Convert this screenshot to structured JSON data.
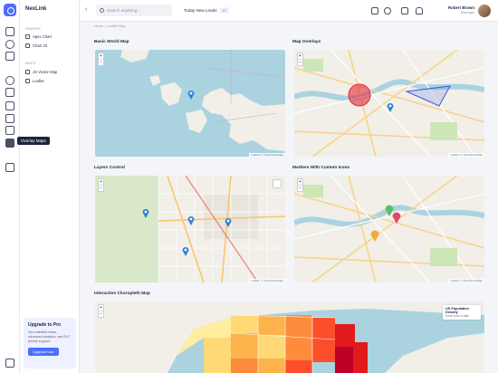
{
  "app": {
    "title": "NexLink"
  },
  "nav": {
    "sections": [
      {
        "heading": "GRAPHS",
        "items": [
          {
            "label": "Apex Chart",
            "icon": "chart-icon"
          },
          {
            "label": "Chart JS",
            "icon": "chart-icon"
          }
        ]
      },
      {
        "heading": "MAPS",
        "items": [
          {
            "label": "JS Vector Map",
            "icon": "map-icon"
          },
          {
            "label": "Leaflet",
            "icon": "map-icon"
          }
        ]
      }
    ]
  },
  "tooltip": "Overlay Maps",
  "promo": {
    "title": "Upgrade to Pro",
    "text": "Get unlimited leads, advanced analytics, and 24/7 priority support.",
    "button": "Upgrade Now"
  },
  "search": {
    "placeholder": "Search anything..."
  },
  "header": {
    "leads_label": "Today New Leads",
    "leads_count": "27"
  },
  "user": {
    "name": "Robert Brown",
    "role": "Manager"
  },
  "breadcrumb": "Home > Leaflet Map",
  "cards": {
    "basic": {
      "title": "Basic World Map"
    },
    "overlays": {
      "title": "Map Overlays"
    },
    "layers": {
      "title": "Layers Control"
    },
    "markers": {
      "title": "Markers With Custom Icons"
    },
    "choropleth": {
      "title": "Interactive Choropleth Map",
      "legend_title": "US Population Density",
      "legend_sub": "Hover over a state"
    }
  },
  "attribution": "Leaflet | © OpenStreetMap",
  "zoom": {
    "plus": "+",
    "minus": "−"
  },
  "colors": {
    "accent": "#4c6fff",
    "water": "#aad3df",
    "land": "#f2efe9"
  }
}
